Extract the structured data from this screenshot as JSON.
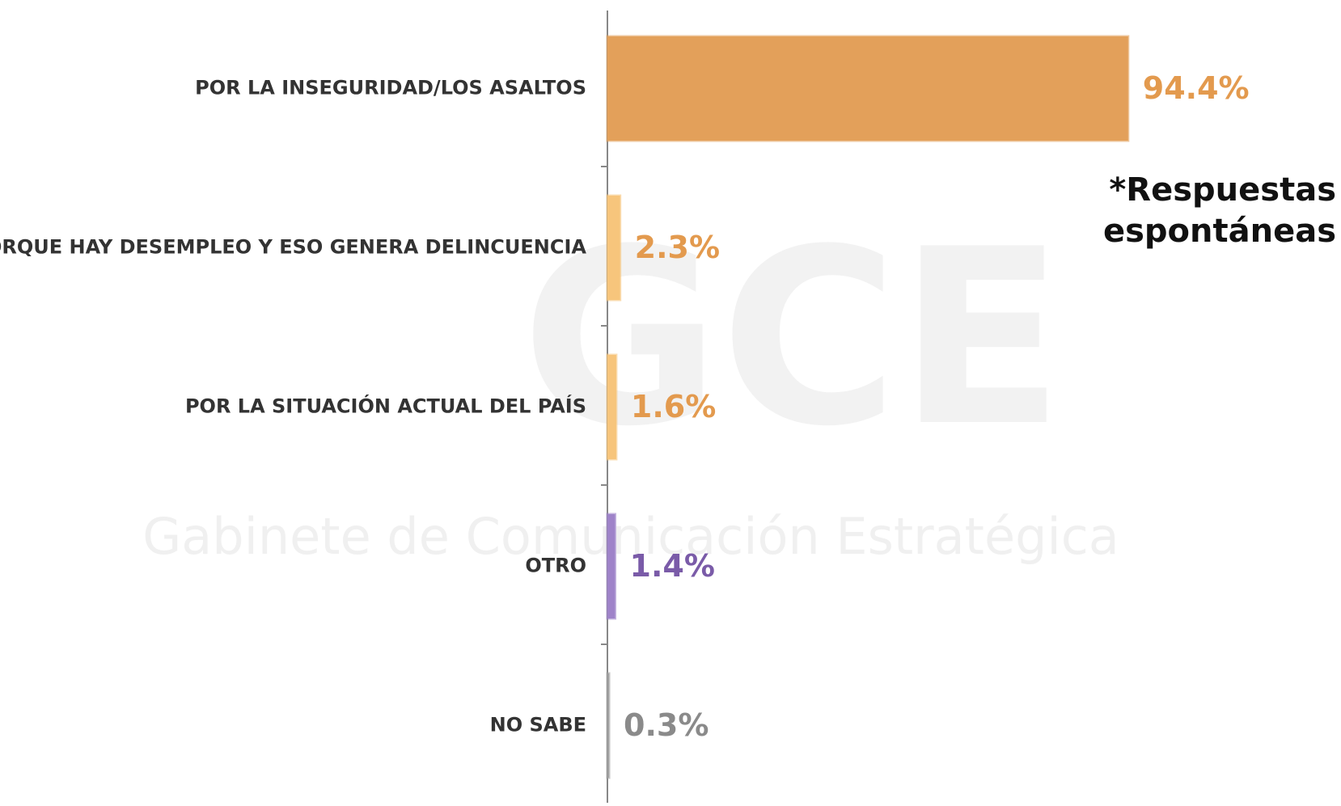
{
  "chart_data": {
    "type": "hbar",
    "categories": [
      "POR LA INSEGURIDAD/LOS ASALTOS",
      "PORQUE HAY DESEMPLEO Y ESO GENERA DELINCUENCIA",
      "POR LA SITUACIÓN ACTUAL DEL PAÍS",
      "OTRO",
      "NO SABE"
    ],
    "values": [
      94.4,
      2.3,
      1.6,
      1.4,
      0.3
    ],
    "value_labels": [
      "94.4%",
      "2.3%",
      "1.6%",
      "1.4%",
      "0.3%"
    ],
    "colors": [
      "#e3a05a",
      "#f7c57c",
      "#f7c57c",
      "#9f83c9",
      "#a0a0a0"
    ],
    "label_colors": [
      "#e39a4e",
      "#e39a4e",
      "#e39a4e",
      "#7a5ba8",
      "#8a8a8a"
    ],
    "xlim": [
      0,
      100
    ],
    "annotation": [
      "*Respuestas",
      "espontáneas"
    ],
    "watermark": [
      "GCE",
      "Gabinete de Comunicación Estratégica"
    ]
  }
}
